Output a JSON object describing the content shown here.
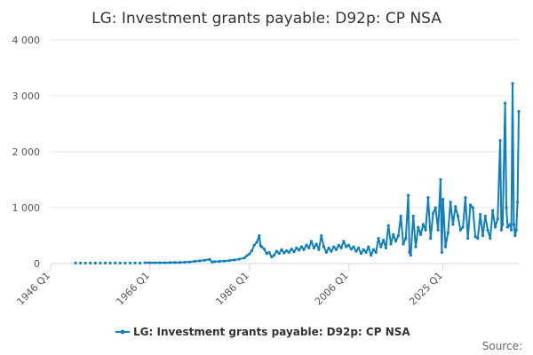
{
  "chart_data": {
    "type": "line",
    "title": "LG: Investment grants payable: D92p: CP NSA",
    "xlabel": "",
    "ylabel": "",
    "ylim": [
      0,
      4000
    ],
    "y_ticks": [
      0,
      1000,
      2000,
      3000,
      4000
    ],
    "y_tick_labels": [
      "0",
      "1 000",
      "2 000",
      "3 000",
      "4 000"
    ],
    "x_ticks": [
      1946,
      1966,
      1986,
      2006,
      2025
    ],
    "x_tick_labels": [
      "1946 Q1",
      "1966 Q1",
      "1986 Q1",
      "2006 Q1",
      "2025 Q1"
    ],
    "grid": true,
    "legend_position": "bottom",
    "color": "#0f7fbd",
    "series": [
      {
        "name": "LG: Investment grants payable: D92p: CP NSA",
        "points": [
          [
            1951.0,
            10
          ],
          [
            1952.0,
            10
          ],
          [
            1953.0,
            10
          ],
          [
            1954.0,
            10
          ],
          [
            1955.0,
            10
          ],
          [
            1956.0,
            10
          ],
          [
            1957.0,
            10
          ],
          [
            1958.0,
            10
          ],
          [
            1959.0,
            10
          ],
          [
            1960.0,
            10
          ],
          [
            1961.0,
            10
          ],
          [
            1962.0,
            10
          ],
          [
            1963.0,
            10
          ],
          [
            1964.0,
            10
          ],
          [
            1965.0,
            15
          ],
          [
            1966.0,
            15
          ],
          [
            1967.0,
            15
          ],
          [
            1968.0,
            15
          ],
          [
            1969.0,
            15
          ],
          [
            1970.0,
            18
          ],
          [
            1971.0,
            20
          ],
          [
            1972.0,
            20
          ],
          [
            1973.0,
            25
          ],
          [
            1974.0,
            30
          ],
          [
            1975.0,
            40
          ],
          [
            1976.0,
            50
          ],
          [
            1977.0,
            60
          ],
          [
            1978.0,
            75
          ],
          [
            1978.5,
            30
          ],
          [
            1979.0,
            35
          ],
          [
            1980.0,
            40
          ],
          [
            1981.0,
            45
          ],
          [
            1982.0,
            55
          ],
          [
            1983.0,
            65
          ],
          [
            1984.0,
            80
          ],
          [
            1985.0,
            100
          ],
          [
            1985.5,
            140
          ],
          [
            1986.0,
            170
          ],
          [
            1986.5,
            230
          ],
          [
            1987.0,
            330
          ],
          [
            1987.5,
            380
          ],
          [
            1988.0,
            500
          ],
          [
            1988.25,
            320
          ],
          [
            1988.5,
            300
          ],
          [
            1989.0,
            260
          ],
          [
            1989.5,
            180
          ],
          [
            1990.0,
            200
          ],
          [
            1990.5,
            120
          ],
          [
            1991.0,
            150
          ],
          [
            1991.5,
            220
          ],
          [
            1992.0,
            180
          ],
          [
            1992.5,
            250
          ],
          [
            1993.0,
            190
          ],
          [
            1993.5,
            230
          ],
          [
            1994.0,
            200
          ],
          [
            1994.5,
            260
          ],
          [
            1995.0,
            210
          ],
          [
            1995.5,
            280
          ],
          [
            1996.0,
            240
          ],
          [
            1996.5,
            300
          ],
          [
            1997.0,
            250
          ],
          [
            1997.5,
            330
          ],
          [
            1998.0,
            280
          ],
          [
            1998.5,
            400
          ],
          [
            1999.0,
            280
          ],
          [
            1999.5,
            350
          ],
          [
            2000.0,
            250
          ],
          [
            2000.5,
            500
          ],
          [
            2001.0,
            300
          ],
          [
            2001.5,
            200
          ],
          [
            2002.0,
            280
          ],
          [
            2002.5,
            220
          ],
          [
            2003.0,
            300
          ],
          [
            2003.5,
            250
          ],
          [
            2004.0,
            330
          ],
          [
            2004.5,
            280
          ],
          [
            2005.0,
            400
          ],
          [
            2005.5,
            300
          ],
          [
            2006.0,
            330
          ],
          [
            2006.5,
            260
          ],
          [
            2007.0,
            300
          ],
          [
            2007.5,
            220
          ],
          [
            2008.0,
            280
          ],
          [
            2008.5,
            180
          ],
          [
            2009.0,
            250
          ],
          [
            2009.5,
            200
          ],
          [
            2010.0,
            300
          ],
          [
            2010.5,
            150
          ],
          [
            2011.0,
            250
          ],
          [
            2011.5,
            200
          ],
          [
            2012.0,
            450
          ],
          [
            2012.5,
            300
          ],
          [
            2013.0,
            420
          ],
          [
            2013.5,
            280
          ],
          [
            2014.0,
            680
          ],
          [
            2014.5,
            350
          ],
          [
            2015.0,
            520
          ],
          [
            2015.5,
            400
          ],
          [
            2016.0,
            500
          ],
          [
            2016.5,
            850
          ],
          [
            2017.0,
            350
          ],
          [
            2017.5,
            450
          ],
          [
            2018.0,
            1220
          ],
          [
            2018.25,
            200
          ],
          [
            2018.5,
            150
          ],
          [
            2019.0,
            850
          ],
          [
            2019.5,
            300
          ],
          [
            2020.0,
            650
          ],
          [
            2020.5,
            520
          ],
          [
            2021.0,
            700
          ],
          [
            2021.5,
            600
          ],
          [
            2022.0,
            1180
          ],
          [
            2022.5,
            450
          ],
          [
            2023.0,
            900
          ],
          [
            2023.5,
            1000
          ],
          [
            2024.0,
            600
          ],
          [
            2024.5,
            1500
          ],
          [
            2024.75,
            200
          ],
          [
            2025.0,
            1150
          ],
          [
            2025.5,
            300
          ],
          [
            2026.0,
            550
          ],
          [
            2026.5,
            1100
          ],
          [
            2027.0,
            700
          ],
          [
            2027.5,
            1020
          ],
          [
            2028.0,
            850
          ],
          [
            2028.5,
            600
          ],
          [
            2029.0,
            650
          ],
          [
            2029.5,
            1180
          ],
          [
            2030.0,
            450
          ],
          [
            2030.5,
            1050
          ],
          [
            2031.0,
            1000
          ],
          [
            2031.5,
            480
          ],
          [
            2032.0,
            450
          ],
          [
            2032.5,
            880
          ],
          [
            2033.0,
            500
          ],
          [
            2033.5,
            850
          ],
          [
            2034.0,
            600
          ],
          [
            2034.5,
            450
          ],
          [
            2035.0,
            950
          ],
          [
            2035.5,
            650
          ],
          [
            2036.0,
            800
          ],
          [
            2036.5,
            2200
          ],
          [
            2036.75,
            600
          ],
          [
            2037.0,
            700
          ],
          [
            2037.5,
            2870
          ],
          [
            2037.75,
            1000
          ],
          [
            2038.0,
            650
          ],
          [
            2038.5,
            700
          ],
          [
            2038.75,
            600
          ],
          [
            2039.0,
            3220
          ],
          [
            2039.25,
            700
          ],
          [
            2039.5,
            500
          ],
          [
            2039.75,
            600
          ],
          [
            2040.0,
            1100
          ],
          [
            2040.25,
            2720
          ]
        ]
      }
    ]
  },
  "legend": {
    "label": "LG: Investment grants payable: D92p: CP NSA"
  },
  "footer": {
    "source": "Source:"
  }
}
